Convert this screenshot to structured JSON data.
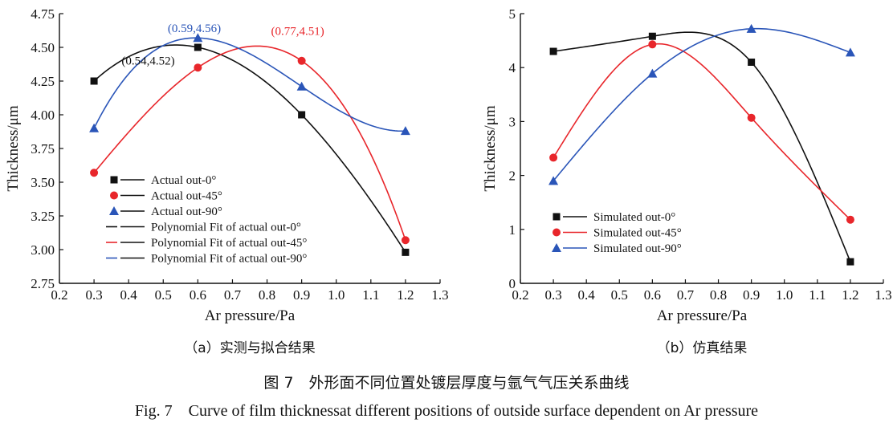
{
  "chart_data": [
    {
      "type": "scatter",
      "xlabel": "Ar pressure/Pa",
      "ylabel": "Thickness/μm",
      "xlim": [
        0.2,
        1.3
      ],
      "ylim": [
        2.75,
        4.75
      ],
      "xticks": [
        "0.2",
        "0.3",
        "0.4",
        "0.5",
        "0.6",
        "0.7",
        "0.8",
        "0.9",
        "1.0",
        "1.1",
        "1.2",
        "1.3"
      ],
      "yticks": [
        "2.75",
        "3.00",
        "3.25",
        "3.50",
        "3.75",
        "4.00",
        "4.25",
        "4.50",
        "4.75"
      ],
      "subtitle": "（a）实测与拟合结果",
      "legend_position": "lower-left",
      "series": [
        {
          "name": "Actual out-0°",
          "marker": "square",
          "color": "#111111",
          "x": [
            0.3,
            0.6,
            0.9,
            1.2
          ],
          "y": [
            4.25,
            4.5,
            4.0,
            2.98
          ]
        },
        {
          "name": "Actual out-45°",
          "marker": "circle",
          "color": "#e8262b",
          "x": [
            0.3,
            0.6,
            0.9,
            1.2
          ],
          "y": [
            3.57,
            4.35,
            4.4,
            3.07
          ]
        },
        {
          "name": "Actual out-90°",
          "marker": "triangle",
          "color": "#2a55b8",
          "x": [
            0.3,
            0.6,
            0.9,
            1.2
          ],
          "y": [
            3.9,
            4.57,
            4.21,
            3.88
          ]
        }
      ],
      "fits": [
        {
          "name": "Polynomial Fit of actual out-0°",
          "color": "#111111",
          "legend_color": "#111111",
          "of": 0
        },
        {
          "name": "Polynomial Fit of actual out-45°",
          "color": "#e8262b",
          "legend_color": "#e8262b",
          "of": 1
        },
        {
          "name": "Polynomial Fit of actual out-90°",
          "color": "#2a55b8",
          "legend_color": "#2a55b8",
          "of": 2
        }
      ],
      "annotations": [
        {
          "text": "(0.59,4.56)",
          "color": "#2a55b8",
          "x": 0.59,
          "y": 4.56
        },
        {
          "text": "(0.77,4.51)",
          "color": "#e8262b",
          "x": 0.77,
          "y": 4.51
        },
        {
          "text": "(0.54,4.52)",
          "color": "#111111",
          "x": 0.54,
          "y": 4.52
        }
      ]
    },
    {
      "type": "line",
      "xlabel": "Ar pressure/Pa",
      "ylabel": "Thickness/μm",
      "xlim": [
        0.2,
        1.3
      ],
      "ylim": [
        0,
        5
      ],
      "xticks": [
        "0.2",
        "0.3",
        "0.4",
        "0.5",
        "0.6",
        "0.7",
        "0.8",
        "0.9",
        "1.0",
        "1.1",
        "1.2",
        "1.3"
      ],
      "yticks": [
        "0",
        "1",
        "2",
        "3",
        "4",
        "5"
      ],
      "subtitle": "（b）仿真结果",
      "legend_position": "lower-left",
      "series": [
        {
          "name": "Simulated out-0°",
          "marker": "square",
          "color": "#111111",
          "x": [
            0.3,
            0.6,
            0.9,
            1.2
          ],
          "y": [
            4.3,
            4.58,
            4.1,
            0.4
          ]
        },
        {
          "name": "Simulated out-45°",
          "marker": "circle",
          "color": "#e8262b",
          "x": [
            0.3,
            0.6,
            0.9,
            1.2
          ],
          "y": [
            2.33,
            4.43,
            3.07,
            1.18
          ]
        },
        {
          "name": "Simulated out-90°",
          "marker": "triangle",
          "color": "#2a55b8",
          "x": [
            0.3,
            0.6,
            0.9,
            1.2
          ],
          "y": [
            1.9,
            3.89,
            4.72,
            4.28
          ]
        }
      ]
    }
  ],
  "caption": {
    "cn": "图 7　外形面不同位置处镀层厚度与氩气气压关系曲线",
    "en": "Fig. 7　Curve of film thicknessat different positions of outside surface dependent on Ar pressure"
  }
}
